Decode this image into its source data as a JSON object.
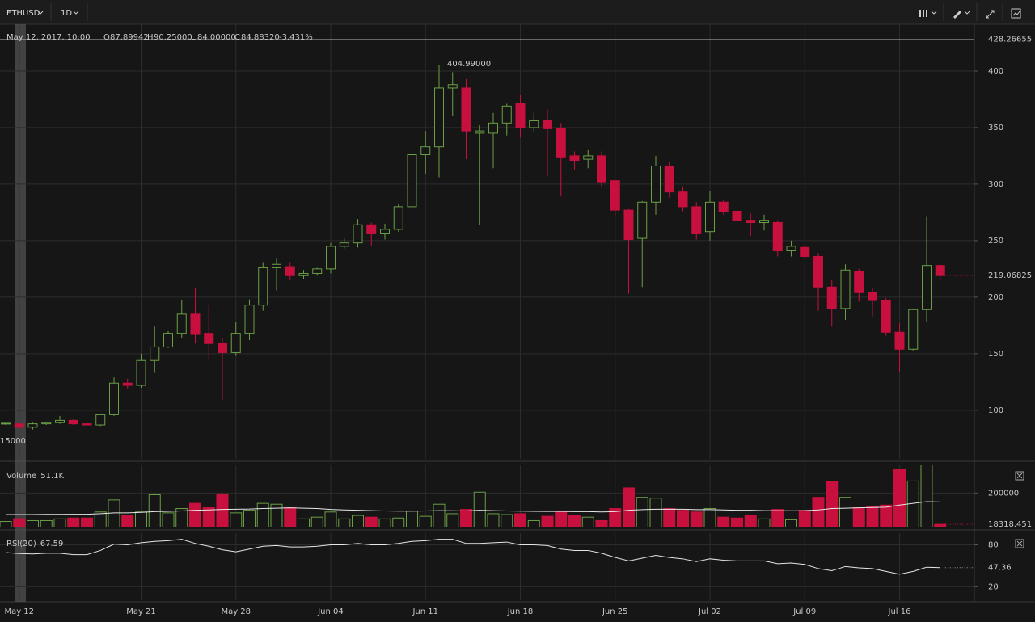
{
  "toolbar": {
    "symbol": "ETHUSD",
    "interval": "1D"
  },
  "crosshair": {
    "date": "May 12, 2017, 10:00",
    "fields": [
      {
        "key": "O",
        "value": "87.89942"
      },
      {
        "key": "H",
        "value": "90.25000"
      },
      {
        "key": "L",
        "value": "84.00000"
      },
      {
        "key": "C",
        "value": "84.88320"
      }
    ],
    "change": "-3.431%",
    "price_label": "15000"
  },
  "chart_data": [
    {
      "type": "candlestick",
      "categories": [
        null,
        "May 12",
        null,
        null,
        null,
        null,
        null,
        null,
        null,
        null,
        "May 21",
        null,
        null,
        null,
        null,
        null,
        null,
        "May 28",
        null,
        null,
        null,
        null,
        null,
        null,
        "Jun 04",
        null,
        null,
        null,
        null,
        null,
        null,
        "Jun 11",
        null,
        null,
        null,
        null,
        null,
        null,
        "Jun 18",
        null,
        null,
        null,
        null,
        null,
        null,
        "Jun 25",
        null,
        null,
        null,
        null,
        null,
        null,
        "Jul 02",
        null,
        null,
        null,
        null,
        null,
        null,
        "Jul 09",
        null,
        null,
        null,
        null,
        null,
        null,
        "Jul 16",
        null,
        null,
        null
      ],
      "open": [
        88,
        87.89942,
        85,
        88,
        89,
        91,
        88,
        87,
        96,
        124,
        122,
        144,
        156,
        168,
        185,
        168,
        159,
        151,
        168,
        193,
        226,
        227,
        219,
        221,
        225,
        245,
        248,
        264,
        256,
        260,
        280,
        326,
        333,
        385,
        385,
        345,
        345,
        354,
        371,
        350,
        356,
        349,
        325,
        322,
        325,
        303,
        277,
        252,
        284,
        316,
        293,
        280,
        258,
        284,
        276,
        268,
        266,
        266,
        241,
        244,
        236,
        209,
        190,
        223,
        204,
        197,
        169,
        154,
        189,
        228
      ],
      "high": [
        89,
        90.25,
        89,
        90,
        95,
        92,
        90,
        97,
        129,
        128,
        150,
        174,
        170,
        197,
        208,
        193,
        164,
        178,
        198,
        231,
        234,
        231,
        224,
        226,
        248,
        252,
        269,
        266,
        265,
        282,
        333,
        347,
        404.99,
        399,
        393,
        352,
        363,
        371,
        379,
        363,
        366,
        354,
        329,
        330,
        329,
        304,
        278,
        285,
        325,
        320,
        298,
        284,
        294,
        286,
        281,
        274,
        273,
        268,
        250,
        246,
        239,
        215,
        229,
        225,
        208,
        199,
        177,
        190,
        271,
        230
      ],
      "low": [
        87,
        84,
        83,
        87,
        88,
        87,
        84,
        86,
        95,
        119,
        120,
        133,
        155,
        164,
        159,
        145,
        109,
        148,
        162,
        188,
        206,
        215,
        216,
        219,
        221,
        243,
        244,
        245,
        251,
        258,
        278,
        309,
        306,
        360,
        322,
        264,
        314,
        343,
        341,
        346,
        307,
        289,
        313,
        314,
        297,
        272,
        203,
        209,
        273,
        288,
        276,
        251,
        250,
        273,
        264,
        254,
        259,
        236,
        236,
        234,
        188,
        174,
        180,
        196,
        183,
        166,
        134,
        153,
        178,
        215
      ],
      "close": [
        88.5,
        84.8832,
        88,
        89,
        91,
        88,
        87,
        96,
        124,
        122,
        144,
        156,
        168,
        185,
        167,
        159,
        151,
        168,
        193,
        226,
        229,
        219,
        221,
        225,
        245,
        248,
        264,
        256,
        260,
        280,
        326,
        333,
        385,
        388,
        347,
        347,
        354,
        369,
        350,
        356,
        349,
        324,
        321,
        325,
        302,
        277,
        251,
        284,
        316,
        293,
        280,
        256,
        284,
        276,
        268,
        266,
        268,
        241,
        245,
        236,
        209,
        190,
        224,
        204,
        197,
        169,
        154,
        189,
        228,
        219.06825
      ],
      "up_color": "#6a9f45",
      "down_color": "#c8103e",
      "ylim": [
        57,
        441.4
      ],
      "yticks": [
        100,
        150,
        200,
        250,
        300,
        350,
        400
      ],
      "grid": true,
      "high_label": {
        "value": 404.99,
        "label": "404.99000"
      },
      "top_line": 428.26655,
      "last": 219.06825
    },
    {
      "type": "bar",
      "title": "Volume",
      "legend_value": "51.1K",
      "values": [
        35000,
        51100,
        40000,
        40000,
        50000,
        55000,
        55000,
        90000,
        160000,
        70000,
        90000,
        190000,
        85000,
        110000,
        140000,
        115000,
        195000,
        85000,
        100000,
        140000,
        135000,
        115000,
        50000,
        60000,
        90000,
        50000,
        70000,
        60000,
        50000,
        55000,
        95000,
        65000,
        135000,
        80000,
        105000,
        205000,
        80000,
        75000,
        80000,
        40000,
        65000,
        95000,
        70000,
        60000,
        40000,
        110000,
        230000,
        175000,
        170000,
        110000,
        100000,
        90000,
        110000,
        60000,
        55000,
        70000,
        50000,
        105000,
        45000,
        100000,
        175000,
        265000,
        175000,
        115000,
        120000,
        130000,
        340000,
        270000,
        370000,
        18318.451
      ],
      "ma_values": [
        75000,
        75000,
        75000,
        76000,
        76000,
        77000,
        77000,
        80000,
        85000,
        85000,
        88000,
        92000,
        94000,
        96000,
        100000,
        102000,
        105000,
        106000,
        107000,
        110000,
        112000,
        114000,
        112000,
        110000,
        105000,
        102000,
        100000,
        98000,
        96000,
        95000,
        95000,
        96000,
        98000,
        97000,
        96000,
        100000,
        98000,
        96000,
        95000,
        94000,
        93000,
        93000,
        92000,
        92000,
        90000,
        92000,
        100000,
        104000,
        106000,
        106000,
        106000,
        104000,
        104000,
        102000,
        100000,
        100000,
        98000,
        98000,
        97000,
        98000,
        102000,
        110000,
        112000,
        114000,
        116000,
        118000,
        130000,
        140000,
        150000,
        148000
      ],
      "line_color": "#e6e6e6",
      "ylim": [
        0,
        361000
      ],
      "yticks": [
        200000
      ],
      "last": 18318.451
    },
    {
      "type": "line",
      "title": "RSI(20)",
      "legend_value": "67.59",
      "values": [
        69,
        67.59,
        67,
        68,
        68,
        66,
        66,
        72,
        81,
        80,
        83,
        85,
        86,
        88,
        82,
        78,
        73,
        70,
        74,
        78,
        79,
        77,
        77,
        78,
        80,
        80,
        82,
        80,
        80,
        82,
        85,
        86,
        88,
        88,
        82,
        82,
        83,
        84,
        80,
        80,
        79,
        74,
        72,
        72,
        68,
        62,
        57,
        61,
        65,
        62,
        60,
        56,
        60,
        58,
        57,
        57,
        57,
        53,
        54,
        52,
        46,
        43,
        49,
        47,
        46,
        42,
        38,
        42,
        48,
        47.36
      ],
      "color": "#e6e6e6",
      "ylim": [
        0.8,
        96.8
      ],
      "yticks": [
        20,
        80
      ],
      "last": 47.36
    }
  ]
}
